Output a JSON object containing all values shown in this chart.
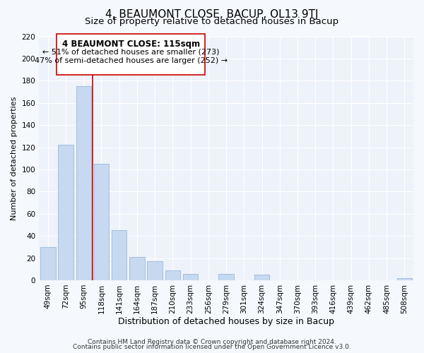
{
  "title": "4, BEAUMONT CLOSE, BACUP, OL13 9TJ",
  "subtitle": "Size of property relative to detached houses in Bacup",
  "xlabel": "Distribution of detached houses by size in Bacup",
  "ylabel": "Number of detached properties",
  "categories": [
    "49sqm",
    "72sqm",
    "95sqm",
    "118sqm",
    "141sqm",
    "164sqm",
    "187sqm",
    "210sqm",
    "233sqm",
    "256sqm",
    "279sqm",
    "301sqm",
    "324sqm",
    "347sqm",
    "370sqm",
    "393sqm",
    "416sqm",
    "439sqm",
    "462sqm",
    "485sqm",
    "508sqm"
  ],
  "values": [
    30,
    122,
    175,
    105,
    45,
    21,
    17,
    9,
    6,
    0,
    6,
    0,
    5,
    0,
    0,
    0,
    0,
    0,
    0,
    0,
    2
  ],
  "bar_color": "#c6d9f0",
  "bar_edge_color": "#9ab8d8",
  "highlight_line_color": "#cc0000",
  "annotation_title": "4 BEAUMONT CLOSE: 115sqm",
  "annotation_line1": "← 51% of detached houses are smaller (273)",
  "annotation_line2": "47% of semi-detached houses are larger (252) →",
  "box_facecolor": "#ffffff",
  "box_edgecolor": "#cc0000",
  "ylim": [
    0,
    220
  ],
  "yticks": [
    0,
    20,
    40,
    60,
    80,
    100,
    120,
    140,
    160,
    180,
    200,
    220
  ],
  "footer1": "Contains HM Land Registry data © Crown copyright and database right 2024.",
  "footer2": "Contains public sector information licensed under the Open Government Licence v3.0.",
  "title_fontsize": 11,
  "subtitle_fontsize": 9.5,
  "xlabel_fontsize": 9,
  "ylabel_fontsize": 8,
  "tick_fontsize": 7.5,
  "annotation_title_fontsize": 8.5,
  "annotation_fontsize": 8,
  "footer_fontsize": 6.5,
  "fig_facecolor": "#f5f8fd",
  "plot_facecolor": "#eef2fa",
  "grid_color": "#ffffff"
}
